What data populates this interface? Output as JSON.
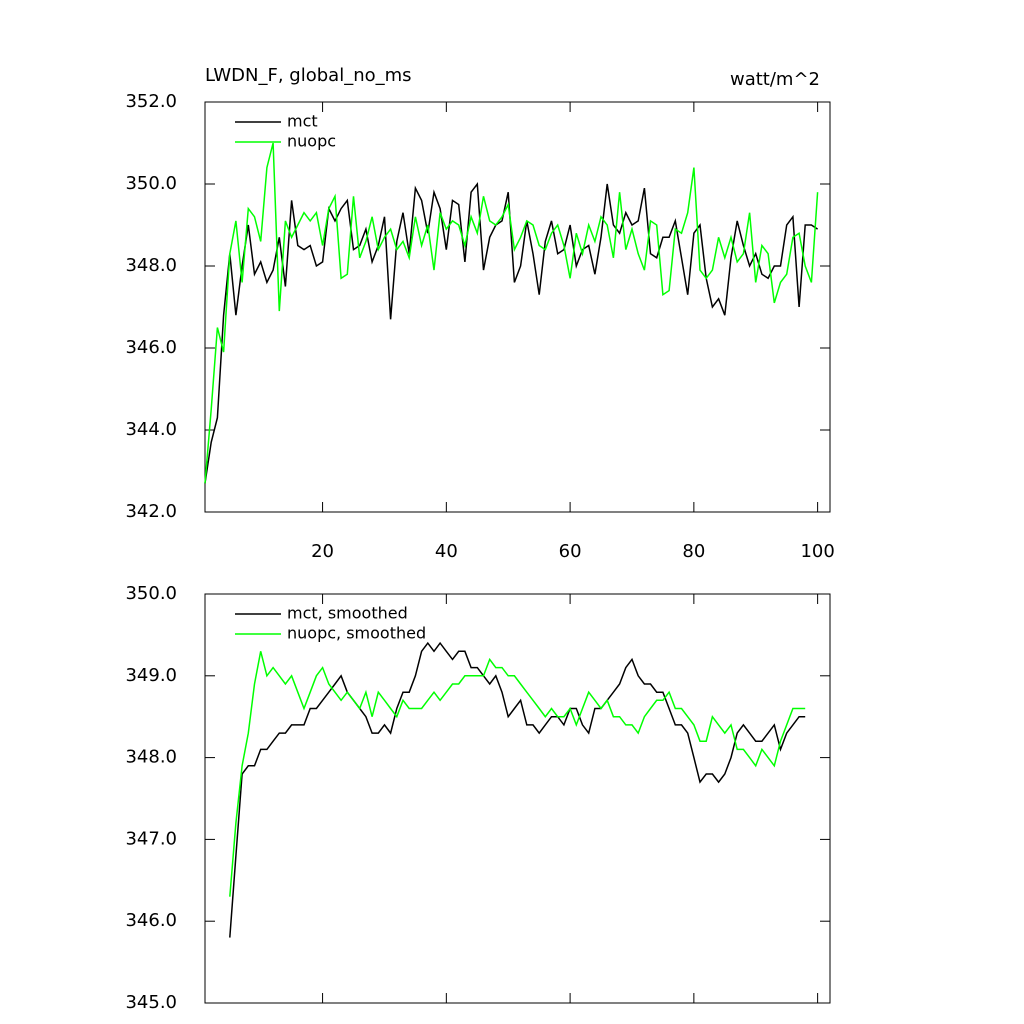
{
  "chart_data": [
    {
      "type": "line",
      "title": "LWDN_F, global_no_ms",
      "units": "watt/m^2",
      "x": [
        1,
        2,
        3,
        4,
        5,
        6,
        7,
        8,
        9,
        10,
        11,
        12,
        13,
        14,
        15,
        16,
        17,
        18,
        19,
        20,
        21,
        22,
        23,
        24,
        25,
        26,
        27,
        28,
        29,
        30,
        31,
        32,
        33,
        34,
        35,
        36,
        37,
        38,
        39,
        40,
        41,
        42,
        43,
        44,
        45,
        46,
        47,
        48,
        49,
        50,
        51,
        52,
        53,
        54,
        55,
        56,
        57,
        58,
        59,
        60,
        61,
        62,
        63,
        64,
        65,
        66,
        67,
        68,
        69,
        70,
        71,
        72,
        73,
        74,
        75,
        76,
        77,
        78,
        79,
        80,
        81,
        82,
        83,
        84,
        85,
        86,
        87,
        88,
        89,
        90,
        91,
        92,
        93,
        94,
        95,
        96,
        97,
        98,
        99,
        100
      ],
      "series": [
        {
          "name": "mct",
          "color": "#000000",
          "values": [
            342.7,
            343.7,
            344.3,
            346.8,
            348.3,
            346.8,
            348.0,
            349.0,
            347.8,
            348.1,
            347.6,
            347.9,
            348.7,
            347.5,
            349.6,
            348.5,
            348.4,
            348.5,
            348.0,
            348.1,
            349.4,
            349.1,
            349.4,
            349.6,
            348.4,
            348.5,
            348.9,
            348.1,
            348.5,
            349.2,
            346.7,
            348.6,
            349.3,
            348.3,
            349.9,
            349.6,
            348.8,
            349.8,
            349.4,
            348.4,
            349.6,
            349.5,
            348.1,
            349.8,
            350.0,
            347.9,
            348.7,
            349.0,
            349.1,
            349.8,
            347.6,
            348.0,
            349.1,
            348.3,
            347.3,
            348.6,
            349.1,
            348.3,
            348.4,
            349.0,
            348.0,
            348.4,
            348.5,
            347.8,
            348.7,
            350.0,
            349.0,
            348.8,
            349.3,
            349.0,
            349.1,
            349.9,
            348.3,
            348.2,
            348.7,
            348.7,
            349.1,
            348.2,
            347.3,
            348.8,
            349.0,
            347.7,
            347.0,
            347.2,
            346.8,
            348.2,
            349.1,
            348.5,
            348.0,
            348.3,
            347.8,
            347.7,
            348.0,
            348.0,
            349.0,
            349.2,
            347.0,
            349.0,
            349.0,
            348.9
          ]
        },
        {
          "name": "nuopc",
          "color": "#00ff00",
          "values": [
            342.7,
            344.5,
            346.5,
            345.9,
            348.3,
            349.1,
            347.6,
            349.4,
            349.2,
            348.6,
            350.4,
            351.0,
            346.9,
            349.1,
            348.7,
            349.0,
            349.3,
            349.1,
            349.3,
            348.5,
            349.4,
            349.7,
            347.7,
            347.8,
            349.7,
            348.2,
            348.6,
            349.2,
            348.4,
            348.7,
            348.9,
            348.4,
            348.6,
            348.2,
            349.2,
            348.5,
            349.0,
            347.9,
            349.3,
            348.9,
            349.1,
            349.0,
            348.5,
            349.2,
            348.8,
            349.7,
            349.1,
            349.0,
            349.2,
            349.5,
            348.4,
            348.7,
            349.1,
            349.0,
            348.5,
            348.4,
            348.8,
            349.0,
            348.5,
            347.7,
            348.8,
            348.3,
            349.0,
            348.6,
            349.2,
            349.0,
            348.2,
            349.8,
            348.4,
            348.9,
            348.3,
            347.9,
            349.1,
            349.0,
            347.3,
            347.4,
            348.9,
            348.8,
            349.3,
            350.4,
            347.9,
            347.7,
            347.9,
            348.7,
            348.2,
            348.7,
            348.1,
            348.3,
            349.3,
            347.6,
            348.5,
            348.3,
            347.1,
            347.6,
            347.8,
            348.7,
            348.8,
            348.0,
            347.6,
            349.8
          ]
        }
      ],
      "xlim": [
        1,
        102
      ],
      "xticks": [
        20,
        40,
        60,
        80,
        100
      ],
      "xtick_labels": true,
      "ylim": [
        342,
        352
      ],
      "yticks": [
        {
          "value": 342,
          "label": "342.0"
        },
        {
          "value": 344,
          "label": "344.0"
        },
        {
          "value": 346,
          "label": "346.0"
        },
        {
          "value": 348,
          "label": "348.0"
        },
        {
          "value": 350,
          "label": "350.0"
        },
        {
          "value": 352,
          "label": "352.0"
        }
      ],
      "legend": "upper left",
      "grid": false
    },
    {
      "type": "line",
      "x": [
        5,
        6,
        7,
        8,
        9,
        10,
        11,
        12,
        13,
        14,
        15,
        16,
        17,
        18,
        19,
        20,
        21,
        22,
        23,
        24,
        25,
        26,
        27,
        28,
        29,
        30,
        31,
        32,
        33,
        34,
        35,
        36,
        37,
        38,
        39,
        40,
        41,
        42,
        43,
        44,
        45,
        46,
        47,
        48,
        49,
        50,
        51,
        52,
        53,
        54,
        55,
        56,
        57,
        58,
        59,
        60,
        61,
        62,
        63,
        64,
        65,
        66,
        67,
        68,
        69,
        70,
        71,
        72,
        73,
        74,
        75,
        76,
        77,
        78,
        79,
        80,
        81,
        82,
        83,
        84,
        85,
        86,
        87,
        88,
        89,
        90,
        91,
        92,
        93,
        94,
        95,
        96,
        97,
        98
      ],
      "series": [
        {
          "name": "mct, smoothed",
          "color": "#000000",
          "values": [
            345.8,
            346.8,
            347.8,
            347.9,
            347.9,
            348.1,
            348.1,
            348.2,
            348.3,
            348.3,
            348.4,
            348.4,
            348.4,
            348.6,
            348.6,
            348.7,
            348.8,
            348.9,
            349.0,
            348.8,
            348.7,
            348.6,
            348.5,
            348.3,
            348.3,
            348.4,
            348.3,
            348.6,
            348.8,
            348.8,
            349.0,
            349.3,
            349.4,
            349.3,
            349.4,
            349.3,
            349.2,
            349.3,
            349.3,
            349.1,
            349.1,
            349.0,
            348.9,
            349.0,
            348.8,
            348.5,
            348.6,
            348.7,
            348.4,
            348.4,
            348.3,
            348.4,
            348.5,
            348.5,
            348.4,
            348.6,
            348.6,
            348.4,
            348.3,
            348.6,
            348.6,
            348.7,
            348.8,
            348.9,
            349.1,
            349.2,
            349.0,
            348.9,
            348.9,
            348.8,
            348.8,
            348.6,
            348.4,
            348.4,
            348.3,
            348.0,
            347.7,
            347.8,
            347.8,
            347.7,
            347.8,
            348.0,
            348.3,
            348.4,
            348.3,
            348.2,
            348.2,
            348.3,
            348.4,
            348.1,
            348.3,
            348.4,
            348.5,
            348.5
          ]
        },
        {
          "name": "nuopc, smoothed",
          "color": "#00ff00",
          "values": [
            346.3,
            347.2,
            347.9,
            348.3,
            348.9,
            349.3,
            349.0,
            349.1,
            349.0,
            348.9,
            349.0,
            348.8,
            348.6,
            348.8,
            349.0,
            349.1,
            348.9,
            348.8,
            348.7,
            348.8,
            348.7,
            348.6,
            348.8,
            348.5,
            348.8,
            348.7,
            348.6,
            348.5,
            348.7,
            348.6,
            348.6,
            348.6,
            348.7,
            348.8,
            348.7,
            348.8,
            348.9,
            348.9,
            349.0,
            349.0,
            349.0,
            349.0,
            349.2,
            349.1,
            349.1,
            349.0,
            349.0,
            348.9,
            348.8,
            348.7,
            348.6,
            348.5,
            348.6,
            348.5,
            348.5,
            348.6,
            348.4,
            348.6,
            348.8,
            348.7,
            348.6,
            348.7,
            348.5,
            348.5,
            348.4,
            348.4,
            348.3,
            348.5,
            348.6,
            348.7,
            348.7,
            348.8,
            348.6,
            348.6,
            348.5,
            348.4,
            348.2,
            348.2,
            348.5,
            348.4,
            348.3,
            348.4,
            348.1,
            348.1,
            348.0,
            347.9,
            348.1,
            348.0,
            347.9,
            348.2,
            348.4,
            348.6,
            348.6,
            348.6
          ]
        }
      ],
      "xlim": [
        1,
        102
      ],
      "xticks": [
        20,
        40,
        60,
        80,
        100
      ],
      "xtick_labels": false,
      "ylim": [
        345,
        350
      ],
      "yticks": [
        {
          "value": 345,
          "label": "345.0"
        },
        {
          "value": 346,
          "label": "346.0"
        },
        {
          "value": 347,
          "label": "347.0"
        },
        {
          "value": 348,
          "label": "348.0"
        },
        {
          "value": 349,
          "label": "349.0"
        },
        {
          "value": 350,
          "label": "350.0"
        }
      ],
      "legend": "upper left",
      "grid": false
    }
  ]
}
